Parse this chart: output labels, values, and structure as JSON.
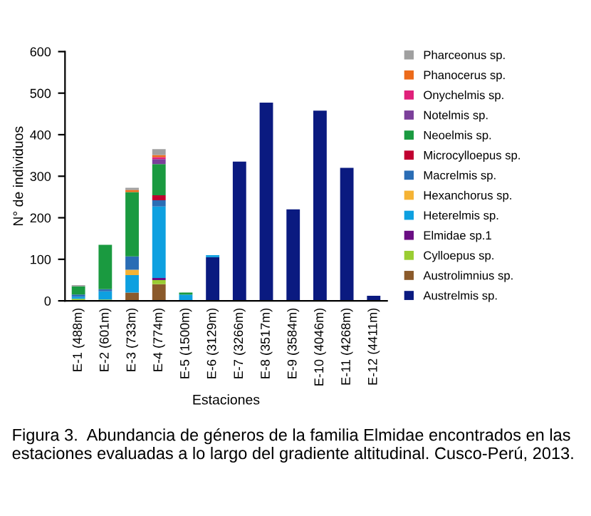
{
  "chart_data": {
    "type": "bar",
    "stacked": true,
    "xlabel": "Estaciones",
    "ylabel": "N° de individuos",
    "categories": [
      "E-1 (488m)",
      "E-2 (601m)",
      "E-3 (733m)",
      "E-4 (774m)",
      "E-5 (1500m)",
      "E-6 (3129m)",
      "E-7 (3266m)",
      "E-8 (3517m)",
      "E-9 (3584m)",
      "E-10 (4046m)",
      "E-11 (4268m)",
      "E-12 (4411m)"
    ],
    "series": [
      {
        "name": "Austrelmis sp.",
        "color": "#0a1a80",
        "values": [
          0,
          0,
          0,
          0,
          0,
          105,
          335,
          477,
          220,
          458,
          320,
          12
        ]
      },
      {
        "name": "Austrolimnius sp.",
        "color": "#8b5a2b",
        "values": [
          2,
          0,
          20,
          40,
          0,
          0,
          0,
          0,
          0,
          0,
          0,
          0
        ]
      },
      {
        "name": "Cylloepus sp.",
        "color": "#9acd32",
        "values": [
          3,
          3,
          0,
          10,
          0,
          0,
          0,
          0,
          0,
          0,
          0,
          0
        ]
      },
      {
        "name": "Elmidae sp.1",
        "color": "#6a0d83",
        "values": [
          0,
          0,
          0,
          5,
          0,
          0,
          0,
          0,
          0,
          0,
          0,
          0
        ]
      },
      {
        "name": "Heterelmis sp.",
        "color": "#0ea0e0",
        "values": [
          5,
          20,
          42,
          172,
          15,
          5,
          0,
          0,
          0,
          0,
          0,
          0
        ]
      },
      {
        "name": "Hexanchorus sp.",
        "color": "#f5b335",
        "values": [
          0,
          0,
          13,
          0,
          0,
          0,
          0,
          0,
          0,
          0,
          0,
          0
        ]
      },
      {
        "name": "Macrelmis sp.",
        "color": "#2a6db5",
        "values": [
          5,
          5,
          32,
          15,
          0,
          0,
          0,
          0,
          0,
          0,
          0,
          0
        ]
      },
      {
        "name": "Microcylloepus sp.",
        "color": "#c00030",
        "values": [
          0,
          0,
          0,
          12,
          0,
          0,
          0,
          0,
          0,
          0,
          0,
          0
        ]
      },
      {
        "name": "Neoelmis sp.",
        "color": "#1a9a40",
        "values": [
          20,
          107,
          155,
          75,
          5,
          0,
          0,
          0,
          0,
          0,
          0,
          0
        ]
      },
      {
        "name": "Notelmis sp.",
        "color": "#7b3f9a",
        "values": [
          0,
          0,
          0,
          12,
          0,
          0,
          0,
          0,
          0,
          0,
          0,
          0
        ]
      },
      {
        "name": "Onychelmis sp.",
        "color": "#e0207a",
        "values": [
          0,
          0,
          0,
          5,
          0,
          0,
          0,
          0,
          0,
          0,
          0,
          0
        ]
      },
      {
        "name": "Phanocerus sp.",
        "color": "#ec6a1a",
        "values": [
          0,
          0,
          5,
          5,
          0,
          0,
          0,
          0,
          0,
          0,
          0,
          0
        ]
      },
      {
        "name": "Pharceonus sp.",
        "color": "#a0a0a0",
        "values": [
          3,
          0,
          5,
          14,
          0,
          0,
          0,
          0,
          0,
          0,
          0,
          0
        ]
      }
    ],
    "ylim": [
      0,
      600
    ],
    "yticks": [
      0,
      100,
      200,
      300,
      400,
      500,
      600
    ],
    "grid": false,
    "legend": "right",
    "annotations": [
      "Figura 3.  Abundancia de géneros de la familia Elmidae encontrados en las estaciones evaluadas a lo largo del gradiente altitudinal. Cusco-Perú, 2013."
    ]
  }
}
